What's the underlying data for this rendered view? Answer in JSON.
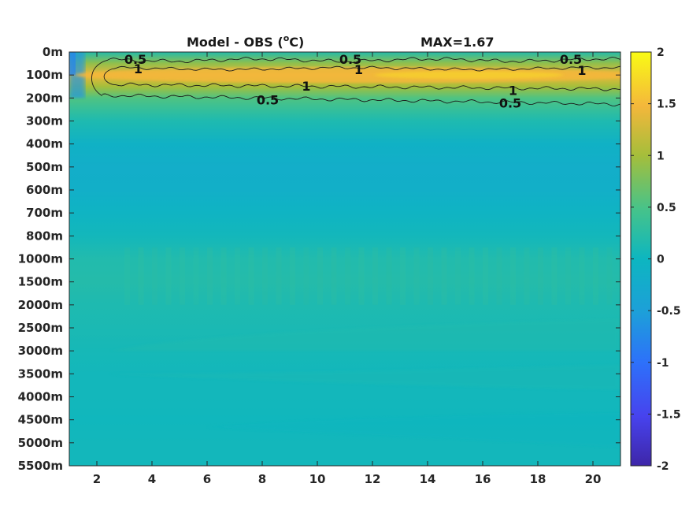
{
  "chart_data": {
    "type": "heatmap",
    "title_left": "Model - OBS (",
    "title_unit_super": "o",
    "title_unit_tail": "C)",
    "title_right": "MAX=1.67",
    "x_ticks": [
      "2",
      "4",
      "6",
      "8",
      "10",
      "12",
      "14",
      "16",
      "18",
      "20"
    ],
    "x_tick_values": [
      2,
      4,
      6,
      8,
      10,
      12,
      14,
      16,
      18,
      20
    ],
    "xlim": [
      1,
      21
    ],
    "y_ticks": [
      "0m",
      "100m",
      "200m",
      "300m",
      "400m",
      "500m",
      "600m",
      "700m",
      "800m",
      "1000m",
      "1500m",
      "2000m",
      "2500m",
      "3000m",
      "3500m",
      "4000m",
      "4500m",
      "5000m",
      "5500m"
    ],
    "colorbar": {
      "range": [
        -2,
        2
      ],
      "ticks": [
        "2",
        "1.5",
        "1",
        "0.5",
        "0",
        "-0.5",
        "-1",
        "-1.5",
        "-2"
      ],
      "tick_values": [
        2,
        1.5,
        1,
        0.5,
        0,
        -0.5,
        -1,
        -1.5,
        -2
      ],
      "colormap": "parula"
    },
    "contour_labels": [
      {
        "text": "0.5",
        "x": 3.4,
        "y_level": 0.35
      },
      {
        "text": "1",
        "x": 3.5,
        "y_level": 0.75
      },
      {
        "text": "0.5",
        "x": 11.2,
        "y_level": 0.35
      },
      {
        "text": "1",
        "x": 11.5,
        "y_level": 0.78
      },
      {
        "text": "0.5",
        "x": 19.2,
        "y_level": 0.35
      },
      {
        "text": "1",
        "x": 19.6,
        "y_level": 0.82
      },
      {
        "text": "0.5",
        "x": 8.2,
        "y_level": 2.1
      },
      {
        "text": "1",
        "x": 9.6,
        "y_level": 1.5
      },
      {
        "text": "1",
        "x": 17.1,
        "y_level": 1.7
      },
      {
        "text": "0.5",
        "x": 17.0,
        "y_level": 2.25
      }
    ],
    "field_profile": [
      {
        "level": 0,
        "value": 0.2
      },
      {
        "level": 0.5,
        "value": 0.9
      },
      {
        "level": 1,
        "value": 1.45
      },
      {
        "level": 1.5,
        "value": 1.0
      },
      {
        "level": 2,
        "value": 0.55
      },
      {
        "level": 2.5,
        "value": 0.35
      },
      {
        "level": 3,
        "value": 0.15
      },
      {
        "level": 4,
        "value": -0.1
      },
      {
        "level": 5,
        "value": -0.18
      },
      {
        "level": 6,
        "value": -0.15
      },
      {
        "level": 7,
        "value": -0.05
      },
      {
        "level": 8,
        "value": 0.05
      },
      {
        "level": 9,
        "value": 0.18
      },
      {
        "level": 10,
        "value": 0.2
      },
      {
        "level": 11,
        "value": 0.15
      },
      {
        "level": 12,
        "value": 0.12
      },
      {
        "level": 13,
        "value": 0.08
      },
      {
        "level": 14,
        "value": 0.05
      },
      {
        "level": 15,
        "value": 0.05
      },
      {
        "level": 16,
        "value": 0.03
      },
      {
        "level": 17,
        "value": 0.05
      },
      {
        "level": 18,
        "value": 0.05
      }
    ]
  }
}
